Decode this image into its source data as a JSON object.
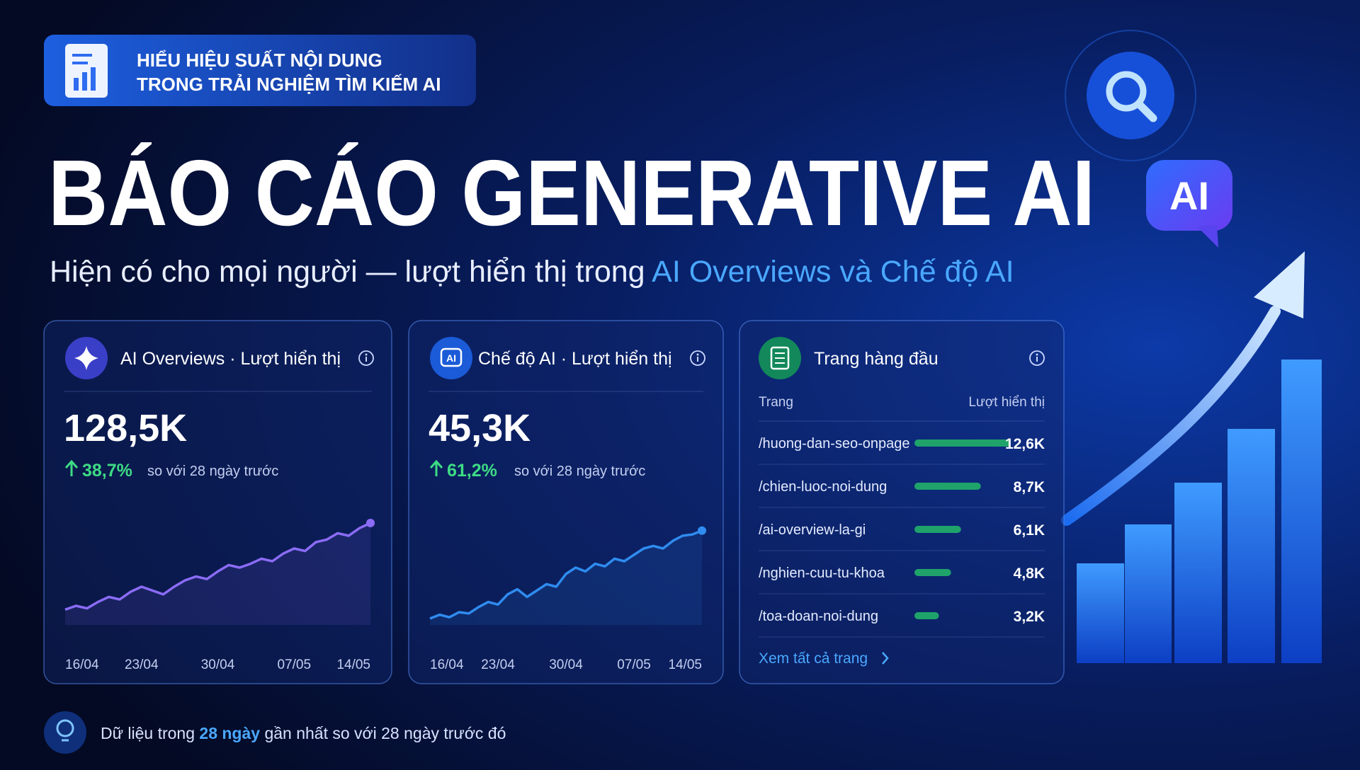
{
  "badge": {
    "lines": [
      "HIỂU HIỆU SUẤT NỘI DUNG",
      "TRONG TRẢI NGHIỆM TÌM KIẾM AI"
    ]
  },
  "title": "BÁO CÁO GENERATIVE AI",
  "subtitle": {
    "text": "Hiện có cho mọi người — lượt hiển thị trong ",
    "highlight": "AI Overviews và Chế độ AI"
  },
  "ai_badge": "AI",
  "cards": [
    {
      "title": "AI Overviews · Lượt hiển thị",
      "value": "128,5K",
      "change": "38,7%",
      "compare": "so với 28 ngày trước",
      "chart": {
        "type": "line",
        "color": "#8b6cf6",
        "ylim": [
          0,
          100
        ],
        "values": [
          12,
          15,
          13,
          18,
          22,
          20,
          26,
          30,
          27,
          24,
          30,
          35,
          38,
          36,
          42,
          47,
          45,
          48,
          52,
          50,
          56,
          60,
          58,
          65,
          67,
          72,
          70,
          76,
          80
        ],
        "x_labels": [
          "16/04",
          "23/04",
          "30/04",
          "07/05",
          "14/05"
        ]
      }
    },
    {
      "title": "Chế độ AI · Lượt hiển thị",
      "icon_label": "AI",
      "value": "45,3K",
      "change": "61,2%",
      "compare": "so với 28 ngày trước",
      "chart": {
        "type": "line",
        "color": "#2f8cf0",
        "ylim": [
          0,
          100
        ],
        "values": [
          5,
          8,
          6,
          10,
          9,
          14,
          18,
          16,
          24,
          28,
          22,
          27,
          32,
          30,
          40,
          45,
          42,
          48,
          46,
          52,
          50,
          55,
          60,
          62,
          60,
          66,
          70,
          71,
          74
        ],
        "x_labels": [
          "16/04",
          "23/04",
          "30/04",
          "07/05",
          "14/05"
        ]
      }
    }
  ],
  "top_pages": {
    "title": "Trang hàng đầu",
    "columns": [
      "Trang",
      "Lượt hiển thị"
    ],
    "color": "#1fa36b",
    "xlim": [
      0,
      13000
    ],
    "rows": [
      {
        "page": "/huong-dan-seo-onpage",
        "value": 12600,
        "value_label": "12,6K"
      },
      {
        "page": "/chien-luoc-noi-dung",
        "value": 8700,
        "value_label": "8,7K"
      },
      {
        "page": "/ai-overview-la-gi",
        "value": 6100,
        "value_label": "6,1K"
      },
      {
        "page": "/nghien-cuu-tu-khoa",
        "value": 4800,
        "value_label": "4,8K"
      },
      {
        "page": "/toa-doan-noi-dung",
        "value": 3200,
        "value_label": "3,2K"
      }
    ],
    "link": "Xem tất cả trang"
  },
  "footer": {
    "before": "Dữ liệu trong ",
    "highlight": "28 ngày",
    "after": " gần nhất so với 28 ngày trước đó"
  }
}
